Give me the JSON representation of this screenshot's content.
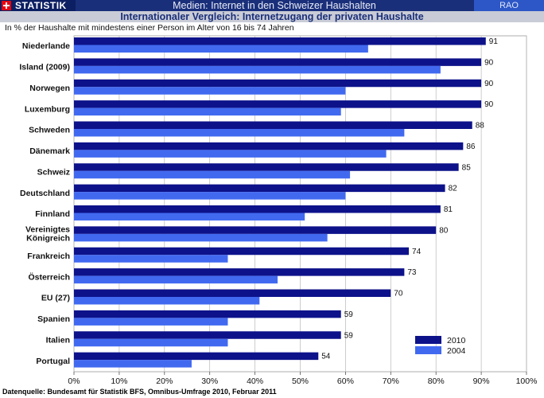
{
  "header": {
    "brand": "STATISTIK",
    "title": "Medien: Internet in den Schweizer Haushalten",
    "right_tag": "RAO",
    "subtitle": "Internationaler Vergleich: Internetzugang der privaten Haushalte",
    "note": "In % der Haushalte mit mindestens einer Person im Alter von 16 bis 74 Jahren"
  },
  "footer": {
    "source": "Datenquelle: Bundesamt für Statistik BFS, Omnibus-Umfrage 2010, Februar 2011"
  },
  "chart_data": {
    "type": "bar",
    "orientation": "horizontal",
    "categories": [
      "Niederlande",
      "Island (2009)",
      "Norwegen",
      "Luxemburg",
      "Schweden",
      "Dänemark",
      "Schweiz",
      "Deutschland",
      "Finnland",
      "Vereinigtes Königreich",
      "Frankreich",
      "Österreich",
      "EU (27)",
      "Spanien",
      "Italien",
      "Portugal"
    ],
    "series": [
      {
        "name": "2010",
        "color": "#0d128a",
        "values": [
          91,
          90,
          90,
          90,
          88,
          86,
          85,
          82,
          81,
          80,
          74,
          73,
          70,
          59,
          59,
          54
        ],
        "labeled": true
      },
      {
        "name": "2004",
        "color": "#4169f0",
        "values": [
          65,
          81,
          60,
          59,
          73,
          69,
          61,
          60,
          51,
          56,
          34,
          45,
          41,
          34,
          34,
          26
        ],
        "labeled": false
      }
    ],
    "xlim": [
      0,
      100
    ],
    "xticks": [
      "0%",
      "10%",
      "20%",
      "30%",
      "40%",
      "50%",
      "60%",
      "70%",
      "80%",
      "90%",
      "100%"
    ],
    "grid": "vertical",
    "legend_position": "bottom-right"
  }
}
